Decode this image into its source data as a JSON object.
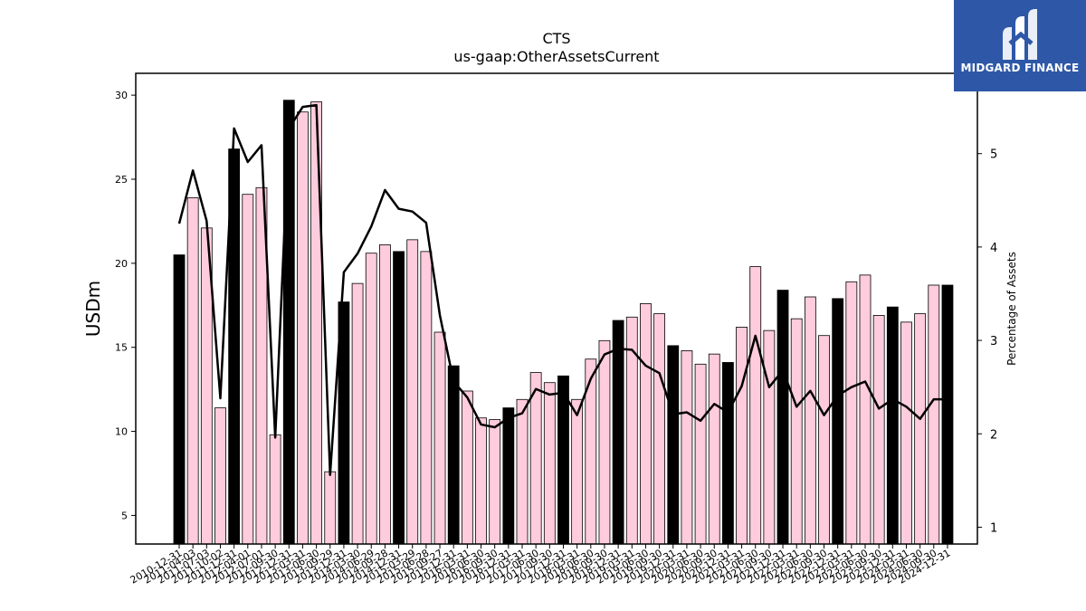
{
  "chart_data": {
    "type": "bar",
    "title": "CTS",
    "subtitle": "us-gaap:OtherAssetsCurrent",
    "ylabel": "USDm",
    "y2label": "Percentage of Assets",
    "ylim": [
      3.3,
      31.3
    ],
    "y2lim": [
      0.82,
      5.86
    ],
    "yticks": [
      5,
      10,
      15,
      20,
      25,
      30
    ],
    "y2ticks": [
      1,
      2,
      3,
      4,
      5
    ],
    "grid": false,
    "bar_colors": {
      "annual": "#000000",
      "quarterly": "#ffccdd"
    },
    "line_color": "#000000",
    "categories": [
      "2010-12-31",
      "2011-04-03",
      "2011-07-03",
      "2011-10-02",
      "2011-12-31",
      "2012-04-01",
      "2012-07-01",
      "2012-09-30",
      "2012-12-31",
      "2013-03-31",
      "2013-06-30",
      "2013-09-29",
      "2013-12-31",
      "2014-03-30",
      "2014-06-29",
      "2014-09-28",
      "2014-12-31",
      "2015-03-29",
      "2015-06-28",
      "2015-09-27",
      "2015-12-31",
      "2016-03-31",
      "2016-06-30",
      "2016-09-30",
      "2016-12-31",
      "2017-03-31",
      "2017-06-30",
      "2017-09-30",
      "2017-12-31",
      "2018-03-31",
      "2018-06-30",
      "2018-09-30",
      "2018-12-31",
      "2019-03-31",
      "2019-06-30",
      "2019-09-30",
      "2019-12-31",
      "2020-03-31",
      "2020-06-30",
      "2020-09-30",
      "2020-12-31",
      "2021-03-31",
      "2021-06-30",
      "2021-09-30",
      "2021-12-31",
      "2022-03-31",
      "2022-06-30",
      "2022-09-30",
      "2022-12-31",
      "2023-03-31",
      "2023-06-30",
      "2023-09-30",
      "2023-12-31",
      "2024-03-31",
      "2024-06-30",
      "2024-09-30",
      "2024-12-31"
    ],
    "series": [
      {
        "kind": "bar",
        "axis": "left",
        "values": [
          20.5,
          23.9,
          22.1,
          11.4,
          26.8,
          24.1,
          24.5,
          9.8,
          29.7,
          29.0,
          29.6,
          7.6,
          17.7,
          18.8,
          20.6,
          21.1,
          20.7,
          21.4,
          20.7,
          15.9,
          13.9,
          12.4,
          10.8,
          10.7,
          11.4,
          11.9,
          13.5,
          12.9,
          13.3,
          11.9,
          14.3,
          15.4,
          16.6,
          16.8,
          17.6,
          17.0,
          15.1,
          14.8,
          14.0,
          14.6,
          14.1,
          16.2,
          19.8,
          16.0,
          18.4,
          16.7,
          18.0,
          15.7,
          17.9,
          18.9,
          19.3,
          16.9,
          17.4,
          16.5,
          17.0,
          18.7,
          18.7
        ]
      },
      {
        "kind": "line",
        "axis": "right",
        "values": [
          4.25,
          4.82,
          4.28,
          2.38,
          5.27,
          4.91,
          5.09,
          1.96,
          5.27,
          5.5,
          5.52,
          1.56,
          3.73,
          3.93,
          4.22,
          4.61,
          4.41,
          4.38,
          4.26,
          3.27,
          2.56,
          2.39,
          2.1,
          2.07,
          2.17,
          2.22,
          2.48,
          2.42,
          2.44,
          2.2,
          2.59,
          2.85,
          2.91,
          2.9,
          2.73,
          2.65,
          2.21,
          2.23,
          2.14,
          2.32,
          2.23,
          2.51,
          3.05,
          2.5,
          2.68,
          2.29,
          2.46,
          2.2,
          2.41,
          2.5,
          2.56,
          2.27,
          2.37,
          2.29,
          2.16,
          2.37,
          2.37
        ]
      }
    ]
  },
  "logo": {
    "text": "MIDGARD FINANCE"
  }
}
